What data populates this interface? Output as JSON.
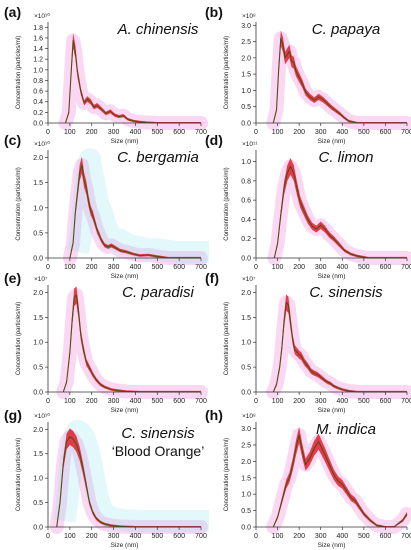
{
  "figure": {
    "x_axis_label": "Size (nm)",
    "y_axis_label": "Concentration (particles/ml)",
    "colors": {
      "band": "#e0202a",
      "line": "#5a4a12",
      "halo": "#f4a6e4",
      "halo_cyan": "#8fe4ec",
      "axis": "#333333"
    }
  },
  "chart_data": [
    {
      "type": "line",
      "panel_label": "(a)",
      "species": "A. chinensis",
      "subtitle": "",
      "multiplier": "×10¹⁰",
      "x_ticks": [
        0,
        100,
        200,
        300,
        400,
        500,
        600,
        700
      ],
      "y_ticks": [
        0,
        0.2,
        0.4,
        0.6,
        0.8,
        1.0,
        1.2,
        1.4,
        1.6,
        1.8
      ],
      "ylim": [
        0,
        1.9
      ],
      "xlim": [
        0,
        700
      ],
      "series": [
        {
          "x": [
            80,
            95,
            105,
            115,
            125,
            135,
            150,
            165,
            180,
            195,
            210,
            225,
            245,
            265,
            285,
            305,
            325,
            345,
            365,
            390,
            420,
            450,
            500,
            600,
            700
          ],
          "y": [
            0,
            0.2,
            0.9,
            1.55,
            1.35,
            0.95,
            0.6,
            0.38,
            0.45,
            0.4,
            0.3,
            0.33,
            0.26,
            0.18,
            0.22,
            0.15,
            0.12,
            0.14,
            0.07,
            0.04,
            0.02,
            0.01,
            0,
            0,
            0
          ]
        }
      ]
    },
    {
      "type": "line",
      "panel_label": "(b)",
      "species": "C. papaya",
      "subtitle": "",
      "multiplier": "×10⁸",
      "x_ticks": [
        0,
        100,
        200,
        300,
        400,
        500,
        600,
        700
      ],
      "y_ticks": [
        0,
        0.5,
        1.0,
        1.5,
        2.0,
        2.5,
        3.0
      ],
      "ylim": [
        0,
        3.1
      ],
      "xlim": [
        0,
        700
      ],
      "series": [
        {
          "x": [
            80,
            95,
            105,
            115,
            125,
            135,
            145,
            155,
            165,
            175,
            185,
            200,
            215,
            230,
            250,
            270,
            290,
            310,
            330,
            350,
            370,
            390,
            410,
            430,
            470,
            700
          ],
          "y": [
            0,
            0.4,
            1.6,
            2.6,
            2.4,
            2.0,
            2.1,
            2.2,
            1.9,
            1.85,
            1.6,
            1.4,
            1.2,
            0.95,
            0.8,
            0.7,
            0.8,
            0.72,
            0.6,
            0.48,
            0.38,
            0.28,
            0.16,
            0.06,
            0,
            0
          ]
        }
      ]
    },
    {
      "type": "line",
      "panel_label": "(c)",
      "species": "C. bergamia",
      "subtitle": "",
      "multiplier": "×10¹⁰",
      "x_ticks": [
        0,
        100,
        200,
        300,
        400,
        500,
        600,
        700
      ],
      "y_ticks": [
        0,
        0.5,
        1.0,
        1.5,
        2.0
      ],
      "ylim": [
        0,
        2.15
      ],
      "xlim": [
        0,
        700
      ],
      "series": [
        {
          "x": [
            100,
            115,
            125,
            135,
            145,
            155,
            165,
            175,
            185,
            195,
            205,
            215,
            225,
            235,
            245,
            260,
            275,
            290,
            310,
            330,
            360,
            390,
            420,
            460,
            500,
            550,
            700
          ],
          "y": [
            0,
            0.3,
            0.9,
            1.3,
            1.7,
            1.85,
            1.55,
            1.4,
            1.15,
            0.95,
            0.85,
            0.7,
            0.55,
            0.45,
            0.35,
            0.25,
            0.22,
            0.25,
            0.2,
            0.15,
            0.12,
            0.08,
            0.05,
            0.06,
            0.03,
            0,
            0
          ]
        }
      ]
    },
    {
      "type": "line",
      "panel_label": "(d)",
      "species": "C. limon",
      "subtitle": "",
      "multiplier": "×10¹¹",
      "x_ticks": [
        0,
        100,
        200,
        300,
        400,
        500,
        600,
        700
      ],
      "y_ticks": [
        0,
        0.2,
        0.4,
        0.6,
        0.8,
        1.0
      ],
      "ylim": [
        0,
        1.12
      ],
      "xlim": [
        0,
        700
      ],
      "series": [
        {
          "x": [
            85,
            100,
            115,
            130,
            145,
            160,
            175,
            190,
            205,
            220,
            240,
            260,
            280,
            300,
            320,
            340,
            360,
            385,
            410,
            440,
            470,
            520,
            700
          ],
          "y": [
            0,
            0.15,
            0.45,
            0.72,
            0.88,
            0.95,
            0.88,
            0.72,
            0.58,
            0.5,
            0.4,
            0.33,
            0.3,
            0.34,
            0.3,
            0.24,
            0.2,
            0.14,
            0.08,
            0.04,
            0.02,
            0,
            0
          ]
        }
      ]
    },
    {
      "type": "line",
      "panel_label": "(e)",
      "species": "C. paradisi",
      "subtitle": "",
      "multiplier": "×10⁷",
      "x_ticks": [
        0,
        100,
        200,
        300,
        400,
        500,
        600,
        700
      ],
      "y_ticks": [
        0,
        0.5,
        1.0,
        1.5,
        2.0
      ],
      "ylim": [
        0,
        2.15
      ],
      "xlim": [
        0,
        700
      ],
      "series": [
        {
          "x": [
            70,
            85,
            100,
            110,
            120,
            130,
            140,
            150,
            160,
            175,
            190,
            205,
            220,
            240,
            260,
            290,
            320,
            360,
            420,
            700
          ],
          "y": [
            0,
            0.2,
            0.8,
            1.4,
            1.9,
            1.95,
            1.6,
            1.15,
            0.9,
            0.6,
            0.48,
            0.35,
            0.25,
            0.15,
            0.1,
            0.05,
            0.03,
            0.01,
            0,
            0
          ]
        }
      ]
    },
    {
      "type": "line",
      "panel_label": "(f)",
      "species": "C. sinensis",
      "subtitle": "",
      "multiplier": "×10⁷",
      "x_ticks": [
        0,
        100,
        200,
        300,
        400,
        500,
        600,
        700
      ],
      "y_ticks": [
        0,
        0.5,
        1.0,
        1.5,
        2.0
      ],
      "ylim": [
        0,
        2.15
      ],
      "xlim": [
        0,
        700
      ],
      "series": [
        {
          "x": [
            80,
            95,
            110,
            120,
            130,
            140,
            150,
            160,
            170,
            180,
            190,
            200,
            210,
            225,
            240,
            255,
            270,
            285,
            300,
            315,
            330,
            345,
            360,
            380,
            400,
            430,
            470,
            700
          ],
          "y": [
            0,
            0.15,
            0.5,
            0.9,
            1.4,
            1.8,
            1.75,
            1.4,
            1.05,
            0.85,
            0.8,
            0.75,
            0.72,
            0.6,
            0.52,
            0.42,
            0.38,
            0.35,
            0.3,
            0.25,
            0.2,
            0.17,
            0.12,
            0.08,
            0.05,
            0.02,
            0,
            0
          ]
        }
      ]
    },
    {
      "type": "line",
      "panel_label": "(g)",
      "species": "C. sinensis",
      "subtitle": "‘Blood Orange’",
      "multiplier": "×10¹⁰",
      "x_ticks": [
        0,
        100,
        200,
        300,
        400,
        500,
        600,
        700
      ],
      "y_ticks": [
        0,
        0.5,
        1.0,
        1.5,
        2.0
      ],
      "ylim": [
        0,
        2.15
      ],
      "xlim": [
        0,
        700
      ],
      "series": [
        {
          "x": [
            40,
            55,
            70,
            85,
            100,
            115,
            130,
            145,
            160,
            175,
            190,
            205,
            220,
            240,
            260,
            290,
            330,
            400,
            700
          ],
          "y": [
            0,
            0.5,
            1.3,
            1.75,
            1.85,
            1.8,
            1.7,
            1.5,
            1.2,
            0.85,
            0.5,
            0.3,
            0.18,
            0.1,
            0.06,
            0.03,
            0.01,
            0,
            0
          ]
        }
      ]
    },
    {
      "type": "line",
      "panel_label": "(h)",
      "species": "M. indica",
      "subtitle": "",
      "multiplier": "×10⁸",
      "x_ticks": [
        0,
        100,
        200,
        300,
        400,
        500,
        600,
        700
      ],
      "y_ticks": [
        0,
        0.5,
        1.0,
        1.5,
        2.0,
        2.5,
        3.0
      ],
      "ylim": [
        0,
        3.2
      ],
      "xlim": [
        0,
        700
      ],
      "series": [
        {
          "x": [
            80,
            100,
            120,
            140,
            155,
            170,
            185,
            200,
            215,
            230,
            250,
            270,
            290,
            305,
            320,
            340,
            360,
            380,
            400,
            420,
            440,
            460,
            480,
            500,
            530,
            560,
            600,
            640,
            680,
            700
          ],
          "y": [
            0,
            0.3,
            0.8,
            1.3,
            1.5,
            1.9,
            2.4,
            2.8,
            2.3,
            1.9,
            2.1,
            2.4,
            2.6,
            2.4,
            2.2,
            1.9,
            1.6,
            1.4,
            1.3,
            1.1,
            0.9,
            0.8,
            0.6,
            0.4,
            0.2,
            0.05,
            0,
            0,
            0.2,
            0.4
          ]
        }
      ]
    }
  ]
}
